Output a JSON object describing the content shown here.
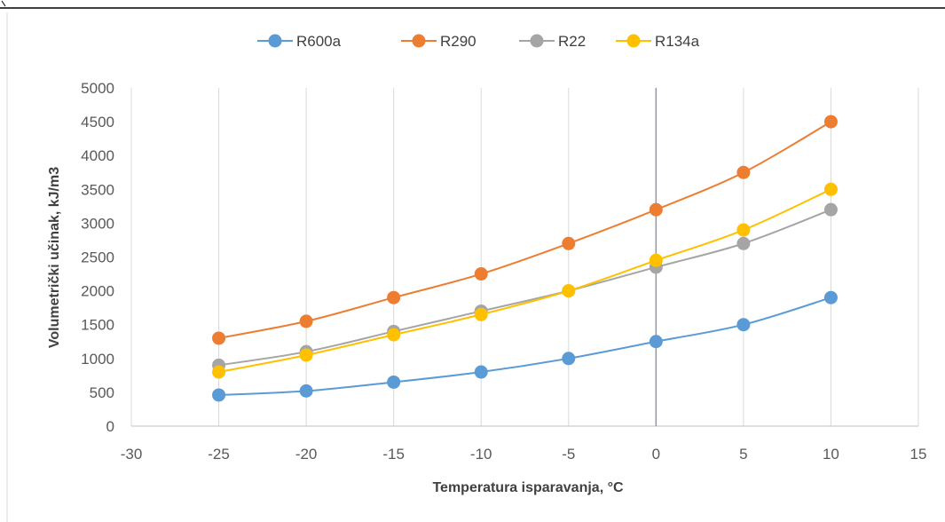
{
  "chart_data": {
    "type": "line",
    "title": "",
    "xlabel": "Temperatura isparavanja, °C",
    "ylabel": "Volumetrički učinak, kJ/m3",
    "xlim": [
      -30,
      15
    ],
    "ylim": [
      0,
      5000
    ],
    "xticks": [
      -30,
      -25,
      -20,
      -15,
      -10,
      -5,
      0,
      5,
      10,
      15
    ],
    "yticks": [
      0,
      500,
      1000,
      1500,
      2000,
      2500,
      3000,
      3500,
      4000,
      4500,
      5000
    ],
    "grid": "vertical",
    "legend": "top",
    "x": [
      -25,
      -20,
      -15,
      -10,
      -5,
      0,
      5,
      10
    ],
    "series": [
      {
        "name": "R600a",
        "color": "#5B9BD5",
        "values": [
          460,
          520,
          650,
          800,
          1000,
          1250,
          1500,
          1900
        ]
      },
      {
        "name": "R290",
        "color": "#ED7D31",
        "values": [
          1300,
          1550,
          1900,
          2250,
          2700,
          3200,
          3750,
          4500
        ]
      },
      {
        "name": "R22",
        "color": "#A5A5A5",
        "values": [
          900,
          1100,
          1400,
          1700,
          2000,
          2350,
          2700,
          3200
        ]
      },
      {
        "name": "R134a",
        "color": "#FFC000",
        "values": [
          800,
          1050,
          1350,
          1650,
          2000,
          2450,
          2900,
          3500
        ]
      }
    ]
  }
}
